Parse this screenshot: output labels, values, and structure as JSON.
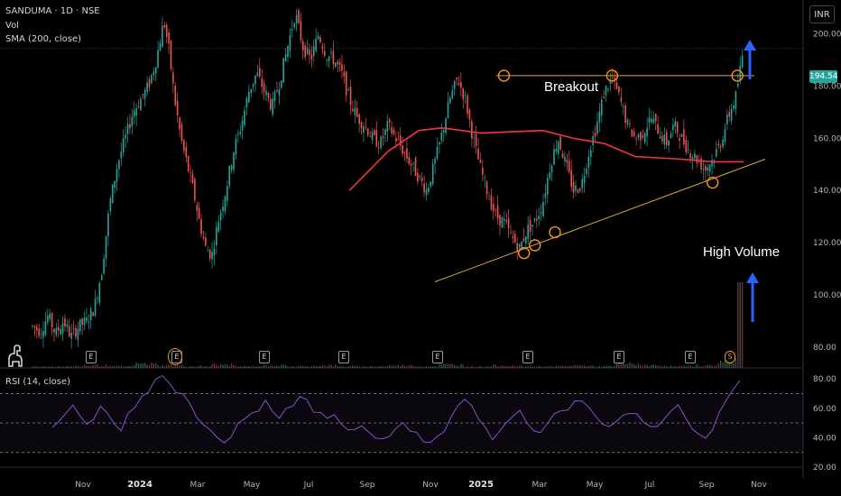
{
  "header": {
    "symbol_line": "SANDUMA · 1D · NSE",
    "volume_label": "Vol",
    "sma_label": "SMA (200, close)",
    "currency": "INR"
  },
  "annotations": {
    "breakout": "Breakout",
    "high_volume": "High Volume"
  },
  "event_markers": [
    "E",
    "E",
    "E",
    "E",
    "E",
    "E",
    "E",
    "E",
    "S"
  ],
  "chart_data": [
    {
      "type": "candlestick",
      "title": "SANDUMA · 1D · NSE",
      "price_axis": {
        "ticks": [
          "200.00",
          "180.00",
          "160.00",
          "140.00",
          "120.00",
          "100.00",
          "80.00"
        ],
        "values": [
          200,
          180,
          160,
          140,
          120,
          100,
          80
        ],
        "range": [
          72,
          213
        ]
      },
      "last_price": "194.54",
      "time_axis": {
        "ticks": [
          "Nov",
          "2024",
          "Mar",
          "May",
          "Jul",
          "Sep",
          "Nov",
          "2025",
          "Mar",
          "May",
          "Jul",
          "Sep",
          "Nov"
        ],
        "bold": [
          "2024",
          "2025"
        ]
      },
      "price_series_approx": [
        [
          0,
          88
        ],
        [
          5,
          86
        ],
        [
          10,
          92
        ],
        [
          15,
          85
        ],
        [
          20,
          90
        ],
        [
          25,
          84
        ],
        [
          30,
          88
        ],
        [
          35,
          90
        ],
        [
          40,
          95
        ],
        [
          45,
          110
        ],
        [
          50,
          135
        ],
        [
          55,
          150
        ],
        [
          60,
          160
        ],
        [
          65,
          170
        ],
        [
          70,
          175
        ],
        [
          75,
          180
        ],
        [
          80,
          190
        ],
        [
          85,
          205
        ],
        [
          88,
          195
        ],
        [
          92,
          175
        ],
        [
          96,
          160
        ],
        [
          100,
          150
        ],
        [
          104,
          140
        ],
        [
          108,
          128
        ],
        [
          112,
          118
        ],
        [
          116,
          115
        ],
        [
          120,
          128
        ],
        [
          125,
          140
        ],
        [
          130,
          155
        ],
        [
          135,
          165
        ],
        [
          140,
          178
        ],
        [
          145,
          185
        ],
        [
          150,
          178
        ],
        [
          155,
          172
        ],
        [
          160,
          182
        ],
        [
          165,
          195
        ],
        [
          170,
          208
        ],
        [
          175,
          195
        ],
        [
          180,
          190
        ],
        [
          185,
          200
        ],
        [
          190,
          192
        ],
        [
          195,
          190
        ],
        [
          200,
          185
        ],
        [
          205,
          175
        ],
        [
          210,
          168
        ],
        [
          215,
          165
        ],
        [
          220,
          160
        ],
        [
          225,
          158
        ],
        [
          230,
          165
        ],
        [
          235,
          160
        ],
        [
          240,
          155
        ],
        [
          245,
          150
        ],
        [
          250,
          145
        ],
        [
          255,
          140
        ],
        [
          260,
          150
        ],
        [
          265,
          162
        ],
        [
          270,
          175
        ],
        [
          275,
          183
        ],
        [
          280,
          175
        ],
        [
          285,
          160
        ],
        [
          290,
          148
        ],
        [
          295,
          138
        ],
        [
          300,
          130
        ],
        [
          305,
          128
        ],
        [
          310,
          122
        ],
        [
          315,
          118
        ],
        [
          320,
          125
        ],
        [
          325,
          128
        ],
        [
          330,
          135
        ],
        [
          335,
          150
        ],
        [
          340,
          160
        ],
        [
          345,
          150
        ],
        [
          350,
          140
        ],
        [
          355,
          142
        ],
        [
          360,
          155
        ],
        [
          365,
          165
        ],
        [
          370,
          178
        ],
        [
          375,
          183
        ],
        [
          380,
          175
        ],
        [
          385,
          165
        ],
        [
          390,
          160
        ],
        [
          395,
          162
        ],
        [
          400,
          168
        ],
        [
          405,
          163
        ],
        [
          410,
          158
        ],
        [
          415,
          165
        ],
        [
          420,
          160
        ],
        [
          425,
          155
        ],
        [
          430,
          152
        ],
        [
          435,
          148
        ],
        [
          440,
          152
        ],
        [
          445,
          158
        ],
        [
          450,
          168
        ],
        [
          455,
          176
        ],
        [
          460,
          194.54
        ]
      ],
      "sma200": {
        "label": "SMA (200, close)",
        "points": [
          [
            205,
            140
          ],
          [
            230,
            155
          ],
          [
            250,
            163
          ],
          [
            265,
            164
          ],
          [
            290,
            162
          ],
          [
            330,
            163
          ],
          [
            350,
            160
          ],
          [
            370,
            158
          ],
          [
            390,
            153
          ],
          [
            420,
            152
          ],
          [
            440,
            151
          ],
          [
            460,
            151
          ]
        ]
      },
      "resistance": {
        "label": "Breakout",
        "level": 184
      },
      "support_trendline": {
        "from": [
          0,
          105
        ],
        "to": [
          1,
          152
        ]
      },
      "touch_points": [
        [
          305,
          184
        ],
        [
          375,
          184
        ],
        [
          456,
          184
        ],
        [
          318,
          116
        ],
        [
          325,
          119
        ],
        [
          338,
          124
        ],
        [
          440,
          143
        ]
      ],
      "volume": {
        "label": "Vol",
        "spike_note": "High Volume",
        "relative_values": [
          2,
          2,
          3,
          2,
          5,
          3,
          2,
          4,
          2,
          3,
          2,
          3,
          2,
          2,
          3,
          2,
          4,
          2,
          3,
          2,
          2,
          3,
          2,
          5,
          3,
          2,
          3,
          8,
          30
        ]
      }
    },
    {
      "type": "line",
      "title": "RSI (14, close)",
      "ylim": [
        20,
        85
      ],
      "ticks": [
        "80.00",
        "60.00",
        "40.00",
        "20.00"
      ],
      "tick_values": [
        80,
        60,
        40,
        20
      ],
      "bands": [
        30,
        50,
        70
      ],
      "values": [
        46,
        50,
        58,
        62,
        55,
        48,
        52,
        60,
        58,
        50,
        45,
        55,
        62,
        68,
        72,
        80,
        82,
        76,
        70,
        68,
        62,
        55,
        50,
        44,
        40,
        36,
        42,
        48,
        52,
        58,
        60,
        64,
        58,
        55,
        60,
        62,
        68,
        64,
        58,
        56,
        52,
        55,
        50,
        46,
        44,
        48,
        42,
        40,
        38,
        42,
        46,
        50,
        45,
        42,
        38,
        35,
        40,
        45,
        55,
        62,
        68,
        60,
        52,
        45,
        40,
        44,
        50,
        55,
        58,
        52,
        46,
        44,
        48,
        55,
        60,
        58,
        64,
        66,
        60,
        55,
        50,
        48,
        52,
        55,
        58,
        56,
        50,
        48,
        46,
        52,
        58,
        62,
        55,
        48,
        44,
        38,
        46,
        56,
        64,
        72,
        80
      ]
    }
  ]
}
